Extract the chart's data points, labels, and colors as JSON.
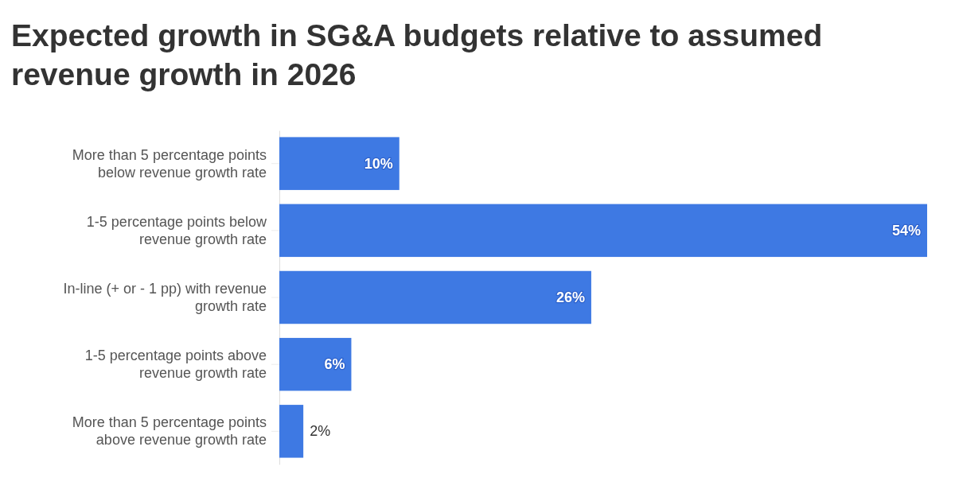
{
  "chart_data": {
    "type": "bar",
    "orientation": "horizontal",
    "title": "Expected growth in SG&A budgets relative to assumed revenue growth in 2026",
    "categories": [
      "More than 5 percentage points below revenue growth rate",
      "1-5 percentage points below revenue growth rate",
      "In-line (+ or - 1 pp) with revenue growth rate",
      "1-5 percentage points above revenue growth rate",
      "More than 5 percentage points above revenue growth rate"
    ],
    "values": [
      10,
      54,
      26,
      6,
      2
    ],
    "color": "#3e79e3",
    "value_labels": [
      "10%",
      "54%",
      "26%",
      "6%",
      "2%"
    ],
    "xlim": [
      0,
      54
    ],
    "tick_labels": "y"
  }
}
